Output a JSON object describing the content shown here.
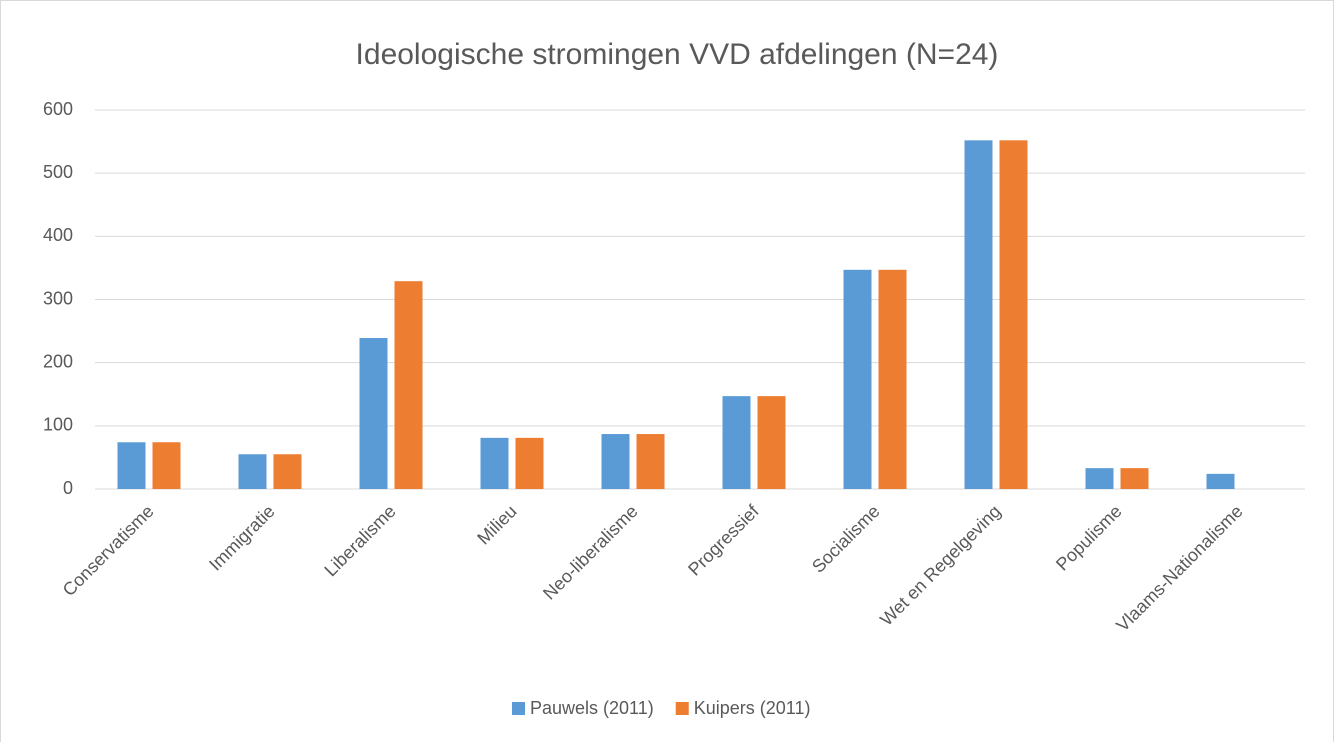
{
  "chart_data": {
    "type": "bar",
    "title": "Ideologische stromingen VVD afdelingen (N=24)",
    "categories": [
      "Conservatisme",
      "Immigratie",
      "Liberalisme",
      "Milieu",
      "Neo-liberalisme",
      "Progressief",
      "Socialisme",
      "Wet en Regelgeving",
      "Populisme",
      "Vlaams-Nationalisme"
    ],
    "series": [
      {
        "name": "Pauwels (2011)",
        "color": "#5b9bd5",
        "values": [
          74,
          55,
          239,
          81,
          87,
          147,
          347,
          552,
          33,
          24
        ]
      },
      {
        "name": "Kuipers (2011)",
        "color": "#ed7d31",
        "values": [
          74,
          55,
          329,
          81,
          87,
          147,
          347,
          552,
          33,
          0
        ]
      }
    ],
    "ylim": [
      0,
      600
    ],
    "yticks": [
      0,
      100,
      200,
      300,
      400,
      500,
      600
    ],
    "grid": true,
    "legend": "bottom"
  }
}
